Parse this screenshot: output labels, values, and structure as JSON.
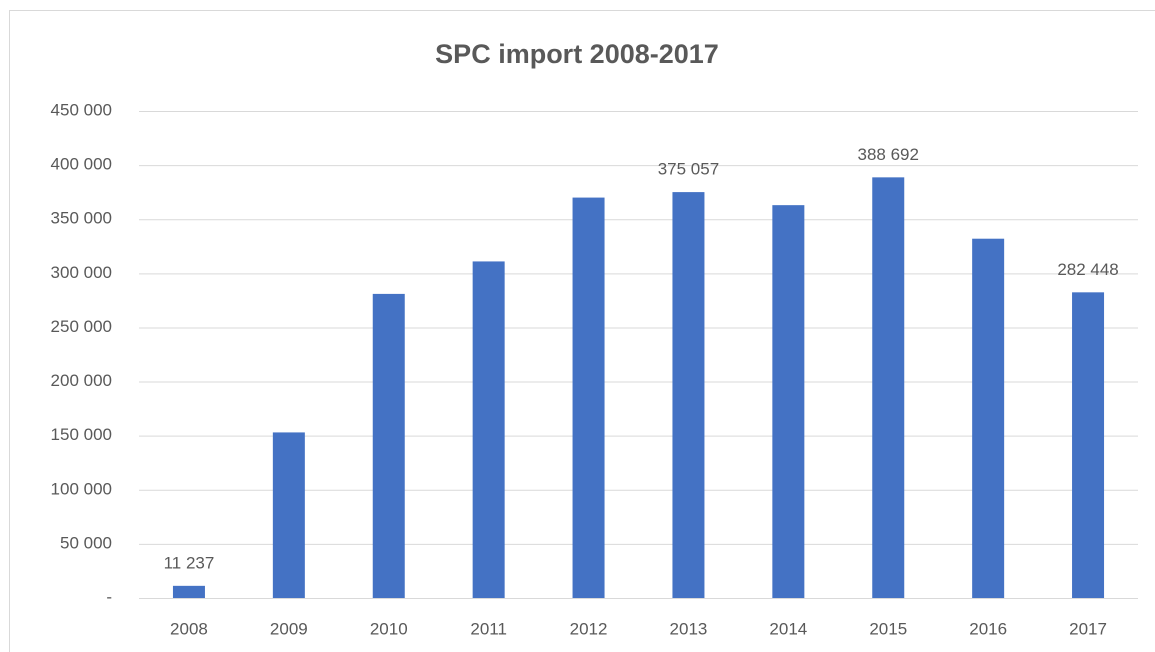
{
  "chart_data": {
    "type": "bar",
    "title": "SPC import 2008-2017",
    "categories": [
      "2008",
      "2009",
      "2010",
      "2011",
      "2012",
      "2013",
      "2014",
      "2015",
      "2016",
      "2017"
    ],
    "values": [
      11237,
      153000,
      281000,
      311000,
      370000,
      375057,
      363000,
      388692,
      332000,
      282448
    ],
    "value_labels": [
      "11 237",
      null,
      null,
      null,
      null,
      "375 057",
      null,
      "388 692",
      null,
      "282 448"
    ],
    "color": "#4472c4",
    "ylim": [
      0,
      450000
    ],
    "yticks": [
      {
        "value": 0,
        "label": "-"
      },
      {
        "value": 50000,
        "label": "50 000"
      },
      {
        "value": 100000,
        "label": "100 000"
      },
      {
        "value": 150000,
        "label": "150 000"
      },
      {
        "value": 200000,
        "label": "200 000"
      },
      {
        "value": 250000,
        "label": "250 000"
      },
      {
        "value": 300000,
        "label": "300 000"
      },
      {
        "value": 350000,
        "label": "350 000"
      },
      {
        "value": 400000,
        "label": "400 000"
      },
      {
        "value": 450000,
        "label": "450 000"
      }
    ],
    "grid": true
  }
}
